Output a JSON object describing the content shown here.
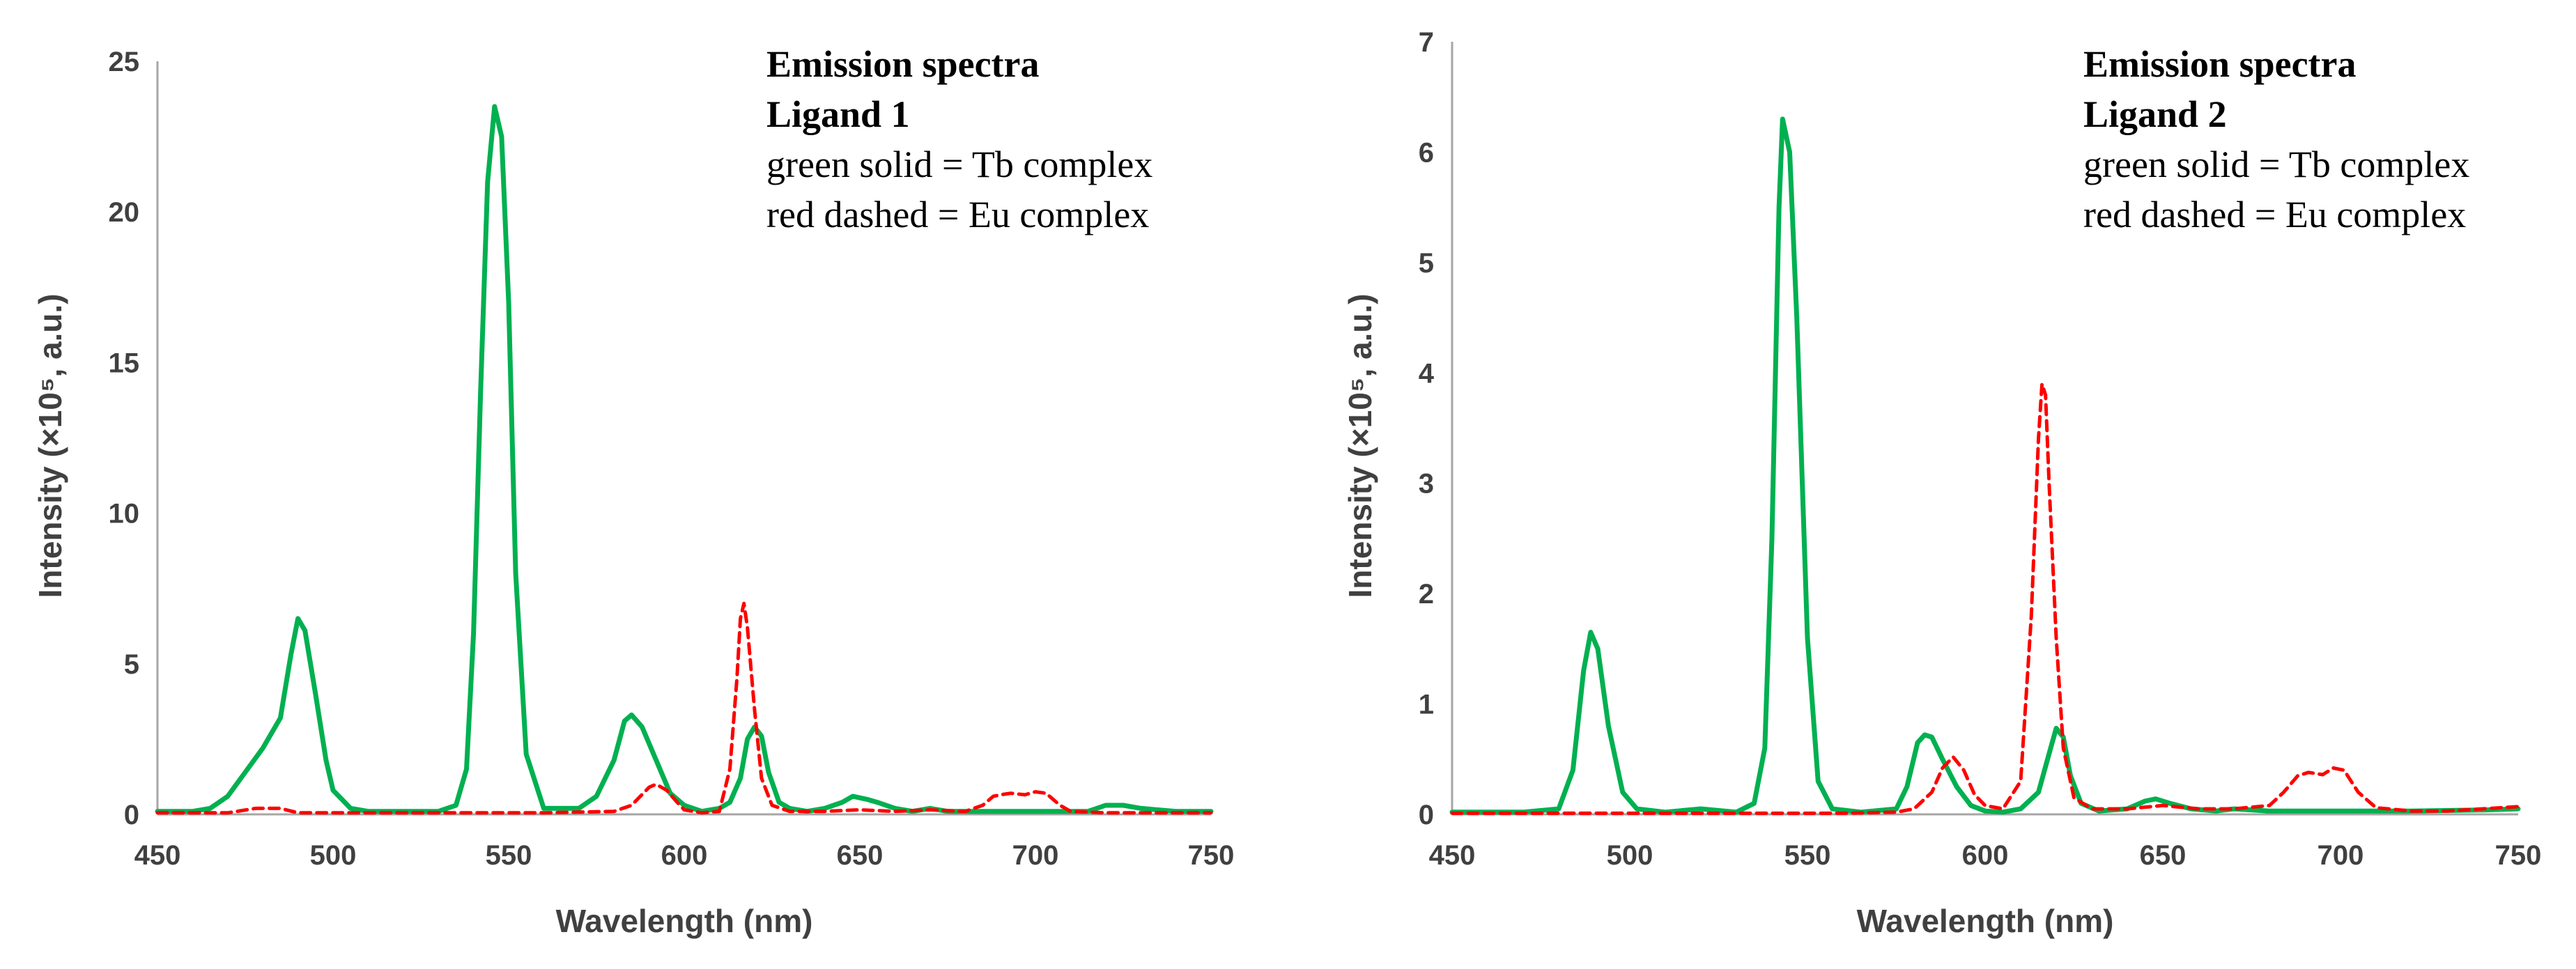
{
  "chart_data": [
    {
      "type": "line",
      "legend_title": "Emission spectra",
      "legend_subtitle": "Ligand 1",
      "legend_entries": [
        "green solid = Tb complex",
        "red dashed = Eu complex"
      ],
      "xlabel": "Wavelength (nm)",
      "ylabel": "Intensity (×10⁵, a.u.)",
      "xlim": [
        450,
        750
      ],
      "ylim": [
        0,
        25
      ],
      "xticks": [
        450,
        500,
        550,
        600,
        650,
        700,
        750
      ],
      "yticks": [
        0,
        5,
        10,
        15,
        20,
        25
      ],
      "grid": false,
      "series": [
        {
          "name": "Tb complex",
          "color": "#00b050",
          "style": "solid",
          "x": [
            450,
            460,
            465,
            470,
            475,
            480,
            485,
            488,
            490,
            492,
            495,
            498,
            500,
            505,
            510,
            520,
            530,
            535,
            538,
            540,
            542,
            544,
            546,
            548,
            550,
            552,
            555,
            560,
            570,
            575,
            580,
            583,
            585,
            588,
            592,
            596,
            600,
            605,
            610,
            613,
            616,
            618,
            620,
            622,
            624,
            627,
            630,
            635,
            640,
            645,
            648,
            652,
            655,
            660,
            665,
            670,
            675,
            680,
            685,
            690,
            695,
            700,
            705,
            710,
            715,
            720,
            725,
            730,
            740,
            750
          ],
          "y": [
            0.1,
            0.1,
            0.2,
            0.6,
            1.4,
            2.2,
            3.2,
            5.3,
            6.5,
            6.1,
            4.0,
            1.8,
            0.8,
            0.2,
            0.1,
            0.1,
            0.1,
            0.3,
            1.5,
            6.0,
            14.0,
            21.0,
            23.5,
            22.5,
            17.0,
            8.0,
            2.0,
            0.2,
            0.2,
            0.6,
            1.8,
            3.1,
            3.3,
            2.9,
            1.8,
            0.7,
            0.3,
            0.1,
            0.2,
            0.4,
            1.2,
            2.5,
            2.9,
            2.6,
            1.4,
            0.4,
            0.2,
            0.1,
            0.2,
            0.4,
            0.6,
            0.5,
            0.4,
            0.2,
            0.1,
            0.2,
            0.1,
            0.1,
            0.1,
            0.1,
            0.1,
            0.1,
            0.1,
            0.1,
            0.1,
            0.3,
            0.3,
            0.2,
            0.1,
            0.1
          ]
        },
        {
          "name": "Eu complex",
          "color": "#ff0000",
          "style": "dashed",
          "x": [
            450,
            470,
            478,
            485,
            490,
            500,
            530,
            560,
            580,
            585,
            590,
            592,
            595,
            598,
            600,
            605,
            610,
            613,
            615,
            616,
            617,
            618,
            620,
            622,
            625,
            630,
            640,
            650,
            660,
            670,
            680,
            685,
            688,
            690,
            693,
            697,
            700,
            703,
            707,
            710,
            720,
            730,
            750
          ],
          "y": [
            0.05,
            0.05,
            0.2,
            0.2,
            0.05,
            0.05,
            0.05,
            0.05,
            0.1,
            0.3,
            0.9,
            1.0,
            0.8,
            0.4,
            0.15,
            0.05,
            0.1,
            1.5,
            4.5,
            6.5,
            7.0,
            6.2,
            3.5,
            1.2,
            0.3,
            0.1,
            0.1,
            0.15,
            0.1,
            0.15,
            0.1,
            0.3,
            0.6,
            0.65,
            0.7,
            0.65,
            0.75,
            0.7,
            0.3,
            0.1,
            0.05,
            0.05,
            0.05
          ]
        }
      ]
    },
    {
      "type": "line",
      "legend_title": "Emission spectra",
      "legend_subtitle": "Ligand 2",
      "legend_entries": [
        "green solid = Tb complex",
        "red dashed = Eu complex"
      ],
      "xlabel": "Wavelength (nm)",
      "ylabel": "Intensity (×10⁵, a.u.)",
      "xlim": [
        450,
        750
      ],
      "ylim": [
        0,
        7
      ],
      "xticks": [
        450,
        500,
        550,
        600,
        650,
        700,
        750
      ],
      "yticks": [
        0,
        1,
        2,
        3,
        4,
        5,
        6,
        7
      ],
      "grid": false,
      "series": [
        {
          "name": "Tb complex",
          "color": "#00b050",
          "style": "solid",
          "x": [
            450,
            470,
            480,
            484,
            487,
            489,
            491,
            494,
            498,
            502,
            510,
            520,
            530,
            535,
            538,
            540,
            542,
            543,
            545,
            547,
            550,
            553,
            557,
            565,
            575,
            578,
            581,
            583,
            585,
            588,
            592,
            596,
            600,
            605,
            610,
            615,
            618,
            620,
            622,
            624,
            627,
            632,
            640,
            645,
            648,
            652,
            658,
            665,
            670,
            680,
            690,
            700,
            720,
            740,
            750
          ],
          "y": [
            0.02,
            0.02,
            0.05,
            0.4,
            1.3,
            1.65,
            1.5,
            0.8,
            0.2,
            0.05,
            0.02,
            0.05,
            0.02,
            0.1,
            0.6,
            2.5,
            5.5,
            6.3,
            6.0,
            4.5,
            1.6,
            0.3,
            0.05,
            0.02,
            0.05,
            0.25,
            0.65,
            0.72,
            0.7,
            0.5,
            0.25,
            0.08,
            0.03,
            0.02,
            0.05,
            0.2,
            0.55,
            0.78,
            0.7,
            0.35,
            0.1,
            0.03,
            0.05,
            0.12,
            0.14,
            0.1,
            0.05,
            0.03,
            0.05,
            0.03,
            0.03,
            0.03,
            0.03,
            0.04,
            0.05
          ]
        },
        {
          "name": "Eu complex",
          "color": "#ff0000",
          "style": "dashed",
          "x": [
            450,
            470,
            490,
            510,
            530,
            560,
            575,
            580,
            585,
            588,
            591,
            594,
            597,
            600,
            605,
            610,
            613,
            615,
            616,
            617,
            618,
            620,
            622,
            625,
            630,
            640,
            650,
            660,
            670,
            680,
            684,
            688,
            691,
            695,
            698,
            701,
            705,
            710,
            720,
            730,
            740,
            750
          ],
          "y": [
            0.01,
            0.01,
            0.01,
            0.01,
            0.01,
            0.01,
            0.02,
            0.05,
            0.2,
            0.42,
            0.52,
            0.4,
            0.18,
            0.08,
            0.05,
            0.3,
            1.8,
            3.4,
            3.9,
            3.8,
            3.0,
            1.6,
            0.6,
            0.15,
            0.05,
            0.05,
            0.08,
            0.05,
            0.05,
            0.08,
            0.2,
            0.35,
            0.38,
            0.36,
            0.42,
            0.4,
            0.2,
            0.06,
            0.03,
            0.03,
            0.05,
            0.07
          ]
        }
      ]
    }
  ]
}
